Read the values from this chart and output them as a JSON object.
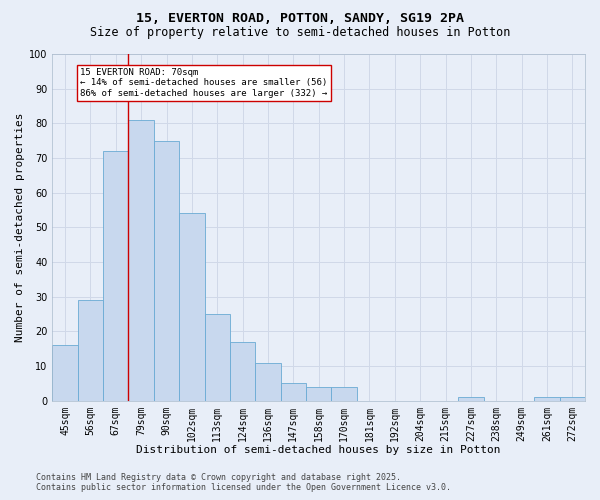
{
  "title1": "15, EVERTON ROAD, POTTON, SANDY, SG19 2PA",
  "title2": "Size of property relative to semi-detached houses in Potton",
  "xlabel": "Distribution of semi-detached houses by size in Potton",
  "ylabel": "Number of semi-detached properties",
  "footnote": "Contains HM Land Registry data © Crown copyright and database right 2025.\nContains public sector information licensed under the Open Government Licence v3.0.",
  "categories": [
    "45sqm",
    "56sqm",
    "67sqm",
    "79sqm",
    "90sqm",
    "102sqm",
    "113sqm",
    "124sqm",
    "136sqm",
    "147sqm",
    "158sqm",
    "170sqm",
    "181sqm",
    "192sqm",
    "204sqm",
    "215sqm",
    "227sqm",
    "238sqm",
    "249sqm",
    "261sqm",
    "272sqm"
  ],
  "values": [
    16,
    29,
    72,
    81,
    75,
    54,
    25,
    17,
    11,
    5,
    4,
    4,
    0,
    0,
    0,
    0,
    1,
    0,
    0,
    1,
    1
  ],
  "bar_color": "#c8d8ee",
  "bar_edge_color": "#6aaad4",
  "vline_color": "#cc0000",
  "vline_pos": 2.5,
  "annotation_text": "15 EVERTON ROAD: 70sqm\n← 14% of semi-detached houses are smaller (56)\n86% of semi-detached houses are larger (332) →",
  "annotation_box_color": "#ffffff",
  "annotation_box_edge": "#cc0000",
  "ylim": [
    0,
    100
  ],
  "yticks": [
    0,
    10,
    20,
    30,
    40,
    50,
    60,
    70,
    80,
    90,
    100
  ],
  "bg_color": "#e8eef8",
  "plot_bg": "#e8eef8",
  "grid_color": "#d0d8e8",
  "title1_fontsize": 9.5,
  "title2_fontsize": 8.5,
  "xlabel_fontsize": 8,
  "ylabel_fontsize": 8,
  "tick_fontsize": 7,
  "annot_fontsize": 6.5,
  "footnote_fontsize": 6
}
